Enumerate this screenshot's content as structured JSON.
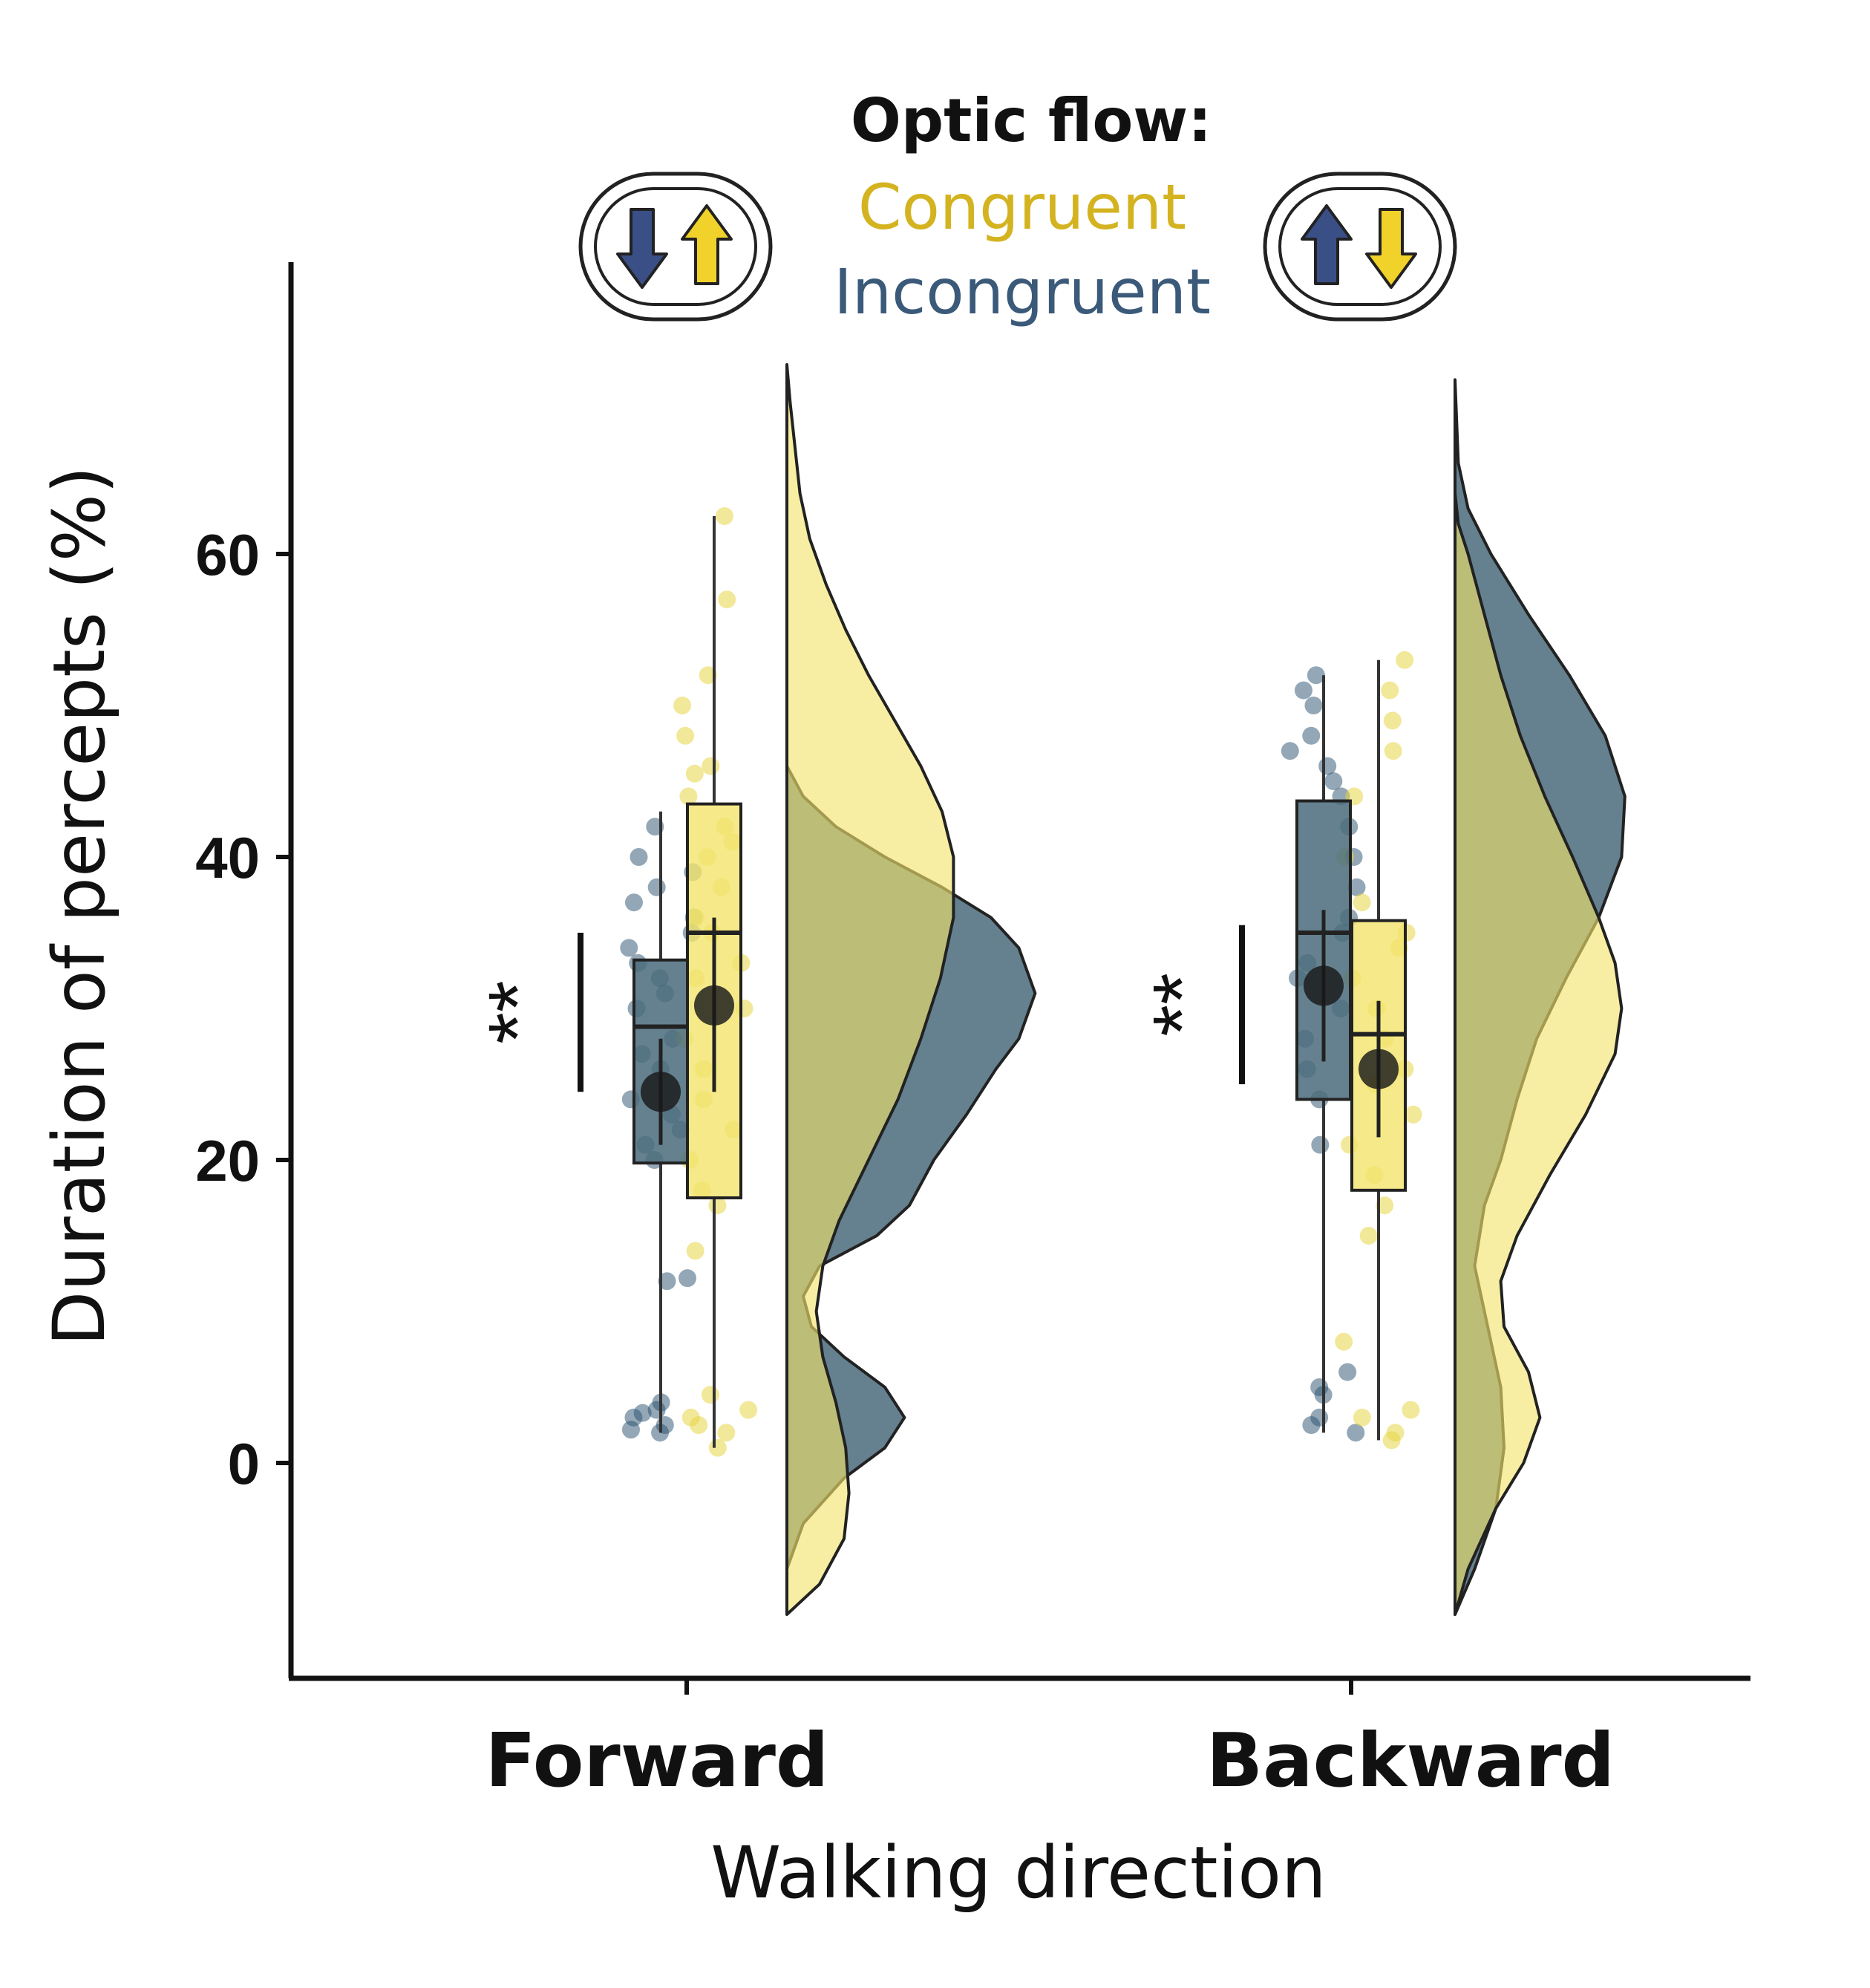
{
  "chart_data": {
    "type": "raincloud",
    "ylabel": "Duration of percepts (%)",
    "xlabel": "Walking direction",
    "y_ticks": [
      0,
      20,
      40,
      60
    ],
    "ylim": [
      -10,
      78
    ],
    "categories": [
      "Forward",
      "Backward"
    ],
    "legend": {
      "title": "Optic flow:",
      "entries": [
        {
          "label": "Congruent",
          "color": "#d4b320"
        },
        {
          "label": "Incongruent",
          "color": "#3b5a7a"
        }
      ],
      "icons": [
        "down-up-arrows-icon",
        "up-down-arrows-icon"
      ]
    },
    "colors": {
      "congruent_fill": "#f2e36b",
      "incongruent_fill": "#4a6b7b",
      "overlap_fill": "#b7b350",
      "outline": "#222222"
    },
    "significance": [
      {
        "category": "Forward",
        "label": "**",
        "y_from": 24.5,
        "y_to": 35
      },
      {
        "category": "Backward",
        "label": "**",
        "y_from": 25,
        "y_to": 35.5
      }
    ],
    "groups": [
      {
        "category": "Forward",
        "series": [
          {
            "name": "Incongruent",
            "box": {
              "min": 2,
              "q1": 19.8,
              "median": 28.8,
              "q3": 33.2,
              "max": 43
            },
            "mean": 24.5,
            "mean_ci": [
              21,
              28
            ],
            "points": [
              2,
              2.5,
              3,
              3.3,
              3.5,
              4,
              2.2,
              12.2,
              12,
              20,
              21,
              22,
              23,
              24,
              26,
              27,
              28,
              30,
              31,
              32,
              33,
              34,
              35,
              36,
              37,
              38,
              39,
              40,
              42
            ],
            "density": [
              [
                -7,
                0
              ],
              [
                -4,
                0.1
              ],
              [
                -1,
                0.35
              ],
              [
                1,
                0.6
              ],
              [
                3,
                0.72
              ],
              [
                5,
                0.6
              ],
              [
                7,
                0.35
              ],
              [
                9,
                0.15
              ],
              [
                11,
                0.1
              ],
              [
                13,
                0.2
              ],
              [
                15,
                0.55
              ],
              [
                17,
                0.75
              ],
              [
                20,
                0.9
              ],
              [
                23,
                1.1
              ],
              [
                26,
                1.28
              ],
              [
                28,
                1.42
              ],
              [
                31,
                1.52
              ],
              [
                34,
                1.42
              ],
              [
                36,
                1.25
              ],
              [
                38,
                0.95
              ],
              [
                40,
                0.6
              ],
              [
                42,
                0.3
              ],
              [
                44,
                0.1
              ],
              [
                46,
                0
              ]
            ]
          },
          {
            "name": "Congruent",
            "box": {
              "min": 1,
              "q1": 17.5,
              "median": 35,
              "q3": 43.5,
              "max": 62.5
            },
            "mean": 30.2,
            "mean_ci": [
              24.5,
              36
            ],
            "points": [
              1,
              2,
              2.5,
              3,
              3.5,
              4.5,
              14,
              17,
              18,
              20,
              22,
              24,
              26,
              28,
              30,
              32,
              33,
              35,
              36,
              38,
              40,
              41,
              42,
              44,
              45.5,
              46,
              48,
              50,
              52,
              57,
              62.5
            ],
            "density": [
              [
                -10,
                0
              ],
              [
                -8,
                0.2
              ],
              [
                -5,
                0.35
              ],
              [
                -2,
                0.38
              ],
              [
                1,
                0.36
              ],
              [
                4,
                0.3
              ],
              [
                7,
                0.22
              ],
              [
                10,
                0.18
              ],
              [
                13,
                0.22
              ],
              [
                16,
                0.32
              ],
              [
                20,
                0.5
              ],
              [
                24,
                0.68
              ],
              [
                28,
                0.82
              ],
              [
                32,
                0.94
              ],
              [
                36,
                1.02
              ],
              [
                40,
                1.02
              ],
              [
                43,
                0.95
              ],
              [
                46,
                0.82
              ],
              [
                49,
                0.66
              ],
              [
                52,
                0.5
              ],
              [
                55,
                0.36
              ],
              [
                58,
                0.24
              ],
              [
                61,
                0.14
              ],
              [
                64,
                0.08
              ],
              [
                67,
                0.05
              ],
              [
                70,
                0.02
              ],
              [
                72.5,
                0
              ]
            ]
          }
        ]
      },
      {
        "category": "Backward",
        "series": [
          {
            "name": "Incongruent",
            "box": {
              "min": 2,
              "q1": 24,
              "median": 35,
              "q3": 43.7,
              "max": 52
            },
            "mean": 31.5,
            "mean_ci": [
              26.5,
              36.5
            ],
            "points": [
              2,
              2.5,
              3,
              4.5,
              5,
              6,
              21,
              24,
              26,
              28,
              30,
              32,
              33,
              35,
              36,
              38,
              40,
              42,
              44,
              45,
              46,
              47,
              48,
              50,
              51,
              52
            ],
            "density": [
              [
                -10,
                0
              ],
              [
                -7,
                0.12
              ],
              [
                -3,
                0.25
              ],
              [
                1,
                0.3
              ],
              [
                5,
                0.28
              ],
              [
                9,
                0.2
              ],
              [
                13,
                0.12
              ],
              [
                17,
                0.18
              ],
              [
                20,
                0.28
              ],
              [
                24,
                0.38
              ],
              [
                28,
                0.5
              ],
              [
                32,
                0.68
              ],
              [
                36,
                0.88
              ],
              [
                40,
                1.02
              ],
              [
                44,
                1.04
              ],
              [
                48,
                0.92
              ],
              [
                52,
                0.7
              ],
              [
                56,
                0.45
              ],
              [
                60,
                0.22
              ],
              [
                63,
                0.08
              ],
              [
                66,
                0.02
              ],
              [
                71.5,
                0
              ]
            ]
          },
          {
            "name": "Congruent",
            "box": {
              "min": 1.5,
              "q1": 18,
              "median": 28.3,
              "q3": 35.8,
              "max": 53
            },
            "mean": 26,
            "mean_ci": [
              21.5,
              30.5
            ],
            "points": [
              1.5,
              2,
              3,
              3.5,
              8,
              15,
              17,
              19,
              21,
              23,
              25,
              26,
              28,
              30,
              32,
              34,
              35,
              37,
              40,
              44,
              47,
              49,
              51,
              53
            ],
            "density": [
              [
                -10,
                0
              ],
              [
                -7,
                0.08
              ],
              [
                -3,
                0.25
              ],
              [
                0,
                0.42
              ],
              [
                3,
                0.52
              ],
              [
                6,
                0.45
              ],
              [
                9,
                0.3
              ],
              [
                12,
                0.28
              ],
              [
                15,
                0.38
              ],
              [
                19,
                0.58
              ],
              [
                23,
                0.8
              ],
              [
                27,
                0.98
              ],
              [
                30,
                1.02
              ],
              [
                33,
                0.98
              ],
              [
                36,
                0.88
              ],
              [
                40,
                0.72
              ],
              [
                44,
                0.55
              ],
              [
                48,
                0.4
              ],
              [
                52,
                0.28
              ],
              [
                56,
                0.18
              ],
              [
                60,
                0.08
              ],
              [
                62,
                0.02
              ],
              [
                64,
                0
              ]
            ]
          }
        ]
      }
    ]
  }
}
